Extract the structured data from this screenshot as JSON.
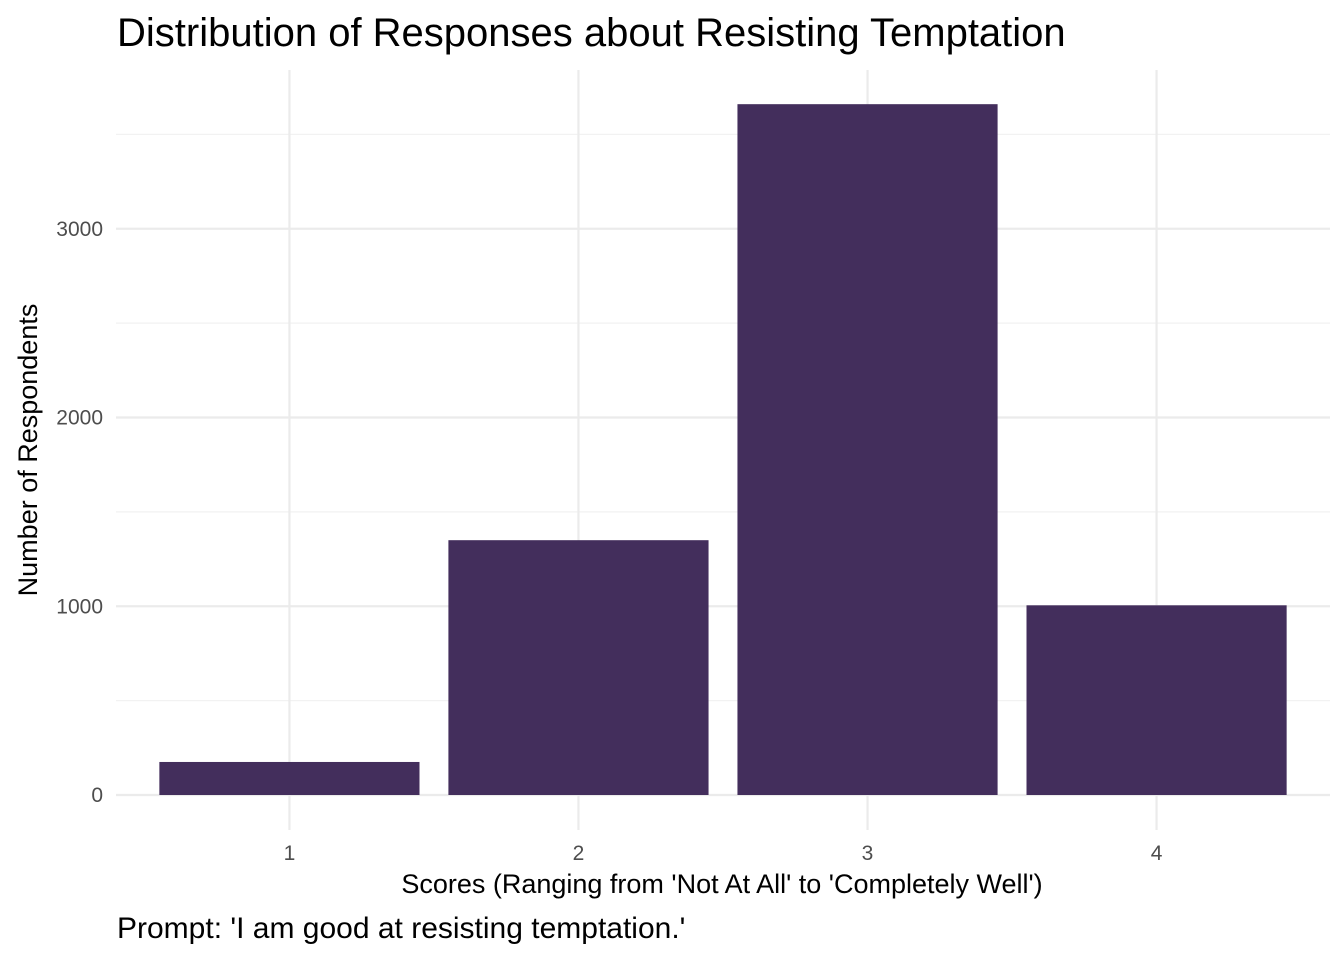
{
  "chart_data": {
    "type": "bar",
    "title": "Distribution of Responses about Resisting Temptation",
    "xlabel": "Scores (Ranging from 'Not At All' to 'Completely Well')",
    "ylabel": "Number of Respondents",
    "caption": "Prompt: 'I am good at resisting temptation.'",
    "categories": [
      "1",
      "2",
      "3",
      "4"
    ],
    "values": [
      175,
      1350,
      3660,
      1005
    ],
    "ylim": [
      0,
      3830
    ],
    "yticks": [
      0,
      1000,
      2000,
      3000
    ],
    "yticks_minor": [
      500,
      1500,
      2500,
      3500
    ],
    "grid": true,
    "legend": "none",
    "bar_color": "#432e5c"
  }
}
